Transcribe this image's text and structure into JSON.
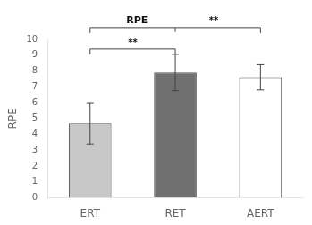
{
  "chart_data": {
    "type": "bar",
    "categories": [
      "ERT",
      "RET",
      "AERT"
    ],
    "values": [
      4.7,
      7.9,
      7.6
    ],
    "errors": [
      1.3,
      1.15,
      0.8
    ],
    "colors": [
      "#c8c8c8",
      "#707070",
      "#ffffff"
    ],
    "ylabel": "RPE",
    "ylim": [
      0,
      10
    ],
    "yticks": [
      0,
      1,
      2,
      3,
      4,
      5,
      6,
      7,
      8,
      9,
      10
    ],
    "grid": false,
    "annotations": [
      {
        "from": "ERT",
        "to": "RET",
        "label": "**"
      },
      {
        "from": "ERT",
        "to": "AERT",
        "text": "RPE",
        "label": "**"
      }
    ]
  }
}
